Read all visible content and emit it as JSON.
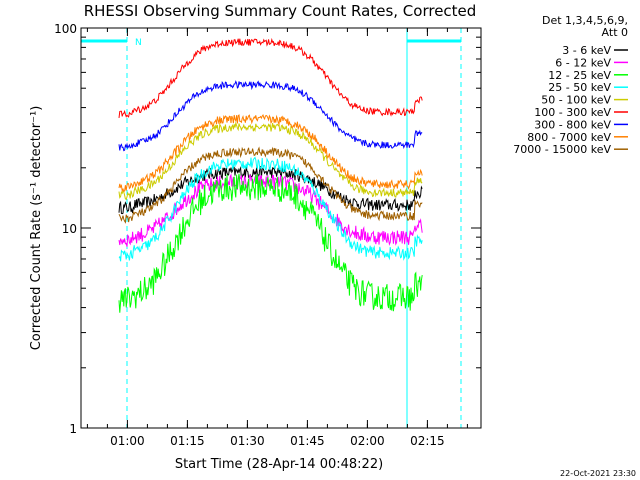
{
  "chart_data": {
    "type": "line",
    "title": "RHESSI Observing Summary Count Rates, Corrected",
    "xlabel": "Start Time (28-Apr-14 00:48:22)",
    "ylabel": "Corrected Count Rate (s⁻¹ detector⁻¹)",
    "y_scale": "log",
    "ylim": [
      1,
      100
    ],
    "xlim_minutes": [
      0,
      100
    ],
    "y_ticks": [
      {
        "label": "1",
        "value": 1
      },
      {
        "label": "10",
        "value": 10
      },
      {
        "label": "100",
        "value": 100
      }
    ],
    "x_ticks": [
      {
        "label": "01:00",
        "minute": 11.6
      },
      {
        "label": "01:15",
        "minute": 26.6
      },
      {
        "label": "01:30",
        "minute": 41.6
      },
      {
        "label": "01:45",
        "minute": 56.6
      },
      {
        "label": "02:00",
        "minute": 71.6
      },
      {
        "label": "02:15",
        "minute": 86.6
      }
    ],
    "legend": {
      "position": "right",
      "header_lines": [
        "Det 1,3,4,5,6,9,",
        "Att 0"
      ]
    },
    "flags": [
      {
        "label": "N",
        "start_minute": 0,
        "end_minute": 11.5
      },
      {
        "label": "",
        "start_minute": 81.5,
        "end_minute": 95
      }
    ],
    "data_range_minutes": [
      9.5,
      85.5
    ],
    "series": [
      {
        "name": "3 - 6 keV",
        "color": "#000000",
        "baseline": 13,
        "peak": 19,
        "noise": 0.07
      },
      {
        "name": "6 - 12 keV",
        "color": "#ff00ff",
        "baseline": 9,
        "peak": 17,
        "noise": 0.09
      },
      {
        "name": "12 - 25 keV",
        "color": "#00ff00",
        "baseline": 4.5,
        "peak": 16,
        "noise": 0.16
      },
      {
        "name": "25 - 50 keV",
        "color": "#00ffff",
        "baseline": 7.5,
        "peak": 21,
        "noise": 0.07
      },
      {
        "name": "50 - 100 keV",
        "color": "#cccc00",
        "baseline": 15,
        "peak": 32,
        "noise": 0.05
      },
      {
        "name": "100 - 300 keV",
        "color": "#ff0000",
        "baseline": 38,
        "peak": 85,
        "noise": 0.04
      },
      {
        "name": "300 - 800 keV",
        "color": "#0000ff",
        "baseline": 26,
        "peak": 52,
        "noise": 0.04
      },
      {
        "name": "800 - 7000 keV",
        "color": "#ff8000",
        "baseline": 16.5,
        "peak": 35,
        "noise": 0.05
      },
      {
        "name": "7000 - 15000 keV",
        "color": "#a06000",
        "baseline": 11.5,
        "peak": 24,
        "noise": 0.05
      }
    ]
  },
  "footer": {
    "timestamp": "22-Oct-2021 23:30"
  }
}
